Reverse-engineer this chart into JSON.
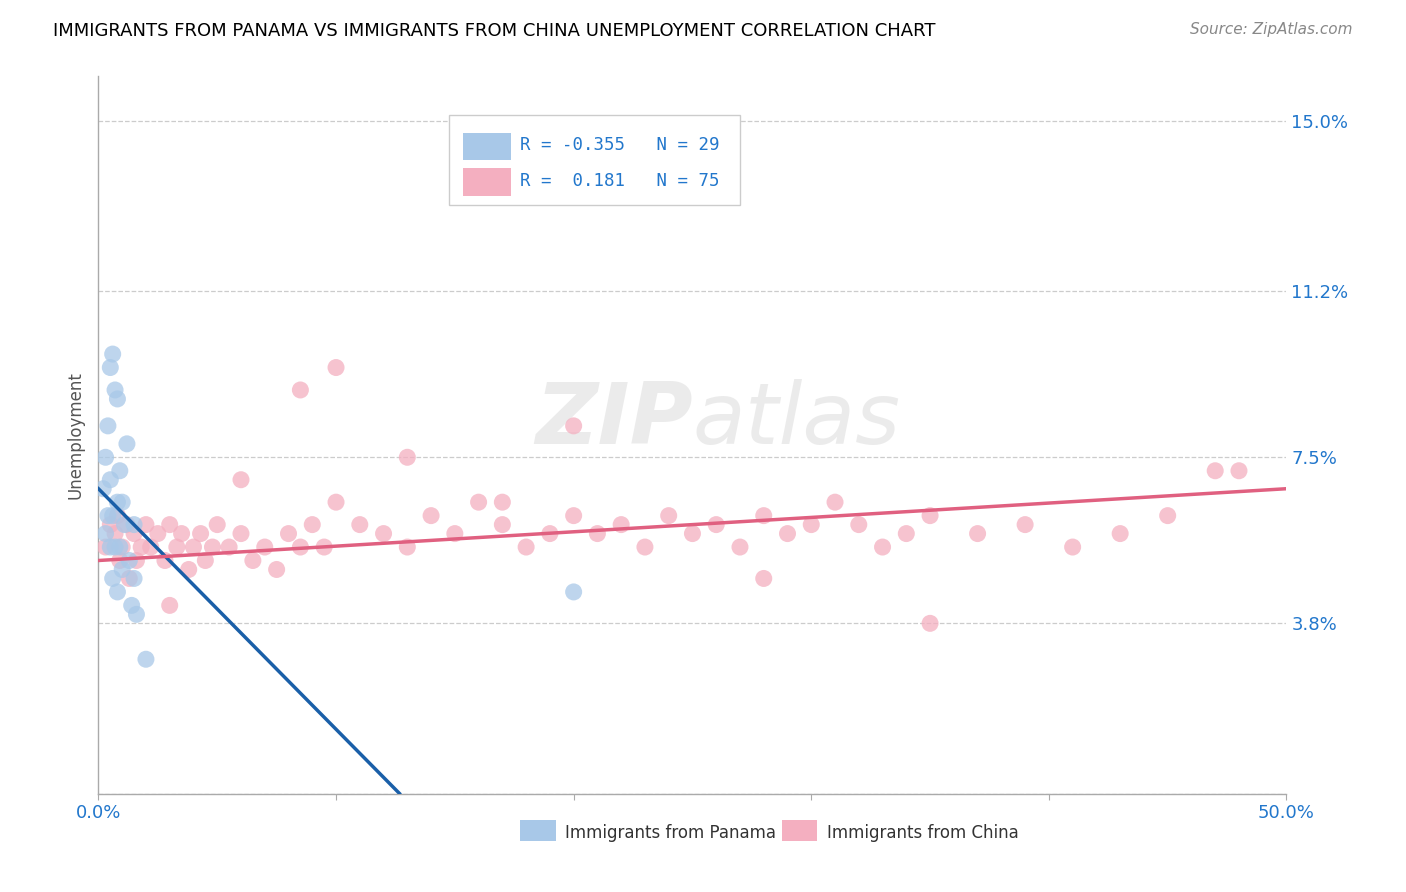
{
  "title": "IMMIGRANTS FROM PANAMA VS IMMIGRANTS FROM CHINA UNEMPLOYMENT CORRELATION CHART",
  "source": "Source: ZipAtlas.com",
  "ylabel": "Unemployment",
  "ytick_positions": [
    0.0,
    0.038,
    0.075,
    0.112,
    0.15
  ],
  "ytick_labels": [
    "",
    "3.8%",
    "7.5%",
    "11.2%",
    "15.0%"
  ],
  "xtick_positions": [
    0.0,
    0.1,
    0.2,
    0.3,
    0.4,
    0.5
  ],
  "xtick_labels": [
    "0.0%",
    "",
    "",
    "",
    "",
    "50.0%"
  ],
  "xmin": 0.0,
  "xmax": 0.5,
  "ymin": 0.0,
  "ymax": 0.16,
  "panama_color": "#a8c8e8",
  "china_color": "#f4afc0",
  "panama_line_color": "#1a5fa8",
  "china_line_color": "#e06080",
  "watermark_top": "ZIP",
  "watermark_bottom": "atlas",
  "panama_x": [
    0.002,
    0.003,
    0.003,
    0.004,
    0.004,
    0.005,
    0.005,
    0.005,
    0.006,
    0.006,
    0.006,
    0.007,
    0.007,
    0.008,
    0.008,
    0.008,
    0.009,
    0.009,
    0.01,
    0.01,
    0.011,
    0.012,
    0.013,
    0.014,
    0.015,
    0.015,
    0.016,
    0.02,
    0.2
  ],
  "panama_y": [
    0.068,
    0.075,
    0.058,
    0.082,
    0.062,
    0.095,
    0.07,
    0.055,
    0.098,
    0.062,
    0.048,
    0.09,
    0.055,
    0.088,
    0.065,
    0.045,
    0.072,
    0.055,
    0.065,
    0.05,
    0.06,
    0.078,
    0.052,
    0.042,
    0.06,
    0.048,
    0.04,
    0.03,
    0.045
  ],
  "china_x": [
    0.003,
    0.005,
    0.007,
    0.008,
    0.009,
    0.01,
    0.012,
    0.013,
    0.015,
    0.016,
    0.018,
    0.02,
    0.022,
    0.025,
    0.028,
    0.03,
    0.033,
    0.035,
    0.038,
    0.04,
    0.043,
    0.045,
    0.048,
    0.05,
    0.055,
    0.06,
    0.065,
    0.07,
    0.075,
    0.08,
    0.085,
    0.09,
    0.095,
    0.1,
    0.11,
    0.12,
    0.13,
    0.14,
    0.15,
    0.16,
    0.17,
    0.18,
    0.19,
    0.2,
    0.21,
    0.22,
    0.23,
    0.24,
    0.25,
    0.26,
    0.27,
    0.28,
    0.29,
    0.3,
    0.31,
    0.32,
    0.33,
    0.34,
    0.35,
    0.37,
    0.39,
    0.41,
    0.43,
    0.45,
    0.47,
    0.085,
    0.13,
    0.2,
    0.28,
    0.35,
    0.03,
    0.06,
    0.1,
    0.17,
    0.48
  ],
  "china_y": [
    0.055,
    0.06,
    0.058,
    0.062,
    0.052,
    0.055,
    0.06,
    0.048,
    0.058,
    0.052,
    0.055,
    0.06,
    0.055,
    0.058,
    0.052,
    0.06,
    0.055,
    0.058,
    0.05,
    0.055,
    0.058,
    0.052,
    0.055,
    0.06,
    0.055,
    0.058,
    0.052,
    0.055,
    0.05,
    0.058,
    0.055,
    0.06,
    0.055,
    0.065,
    0.06,
    0.058,
    0.055,
    0.062,
    0.058,
    0.065,
    0.06,
    0.055,
    0.058,
    0.062,
    0.058,
    0.06,
    0.055,
    0.062,
    0.058,
    0.06,
    0.055,
    0.062,
    0.058,
    0.06,
    0.065,
    0.06,
    0.055,
    0.058,
    0.062,
    0.058,
    0.06,
    0.055,
    0.058,
    0.062,
    0.072,
    0.09,
    0.075,
    0.082,
    0.048,
    0.038,
    0.042,
    0.07,
    0.095,
    0.065,
    0.072
  ]
}
